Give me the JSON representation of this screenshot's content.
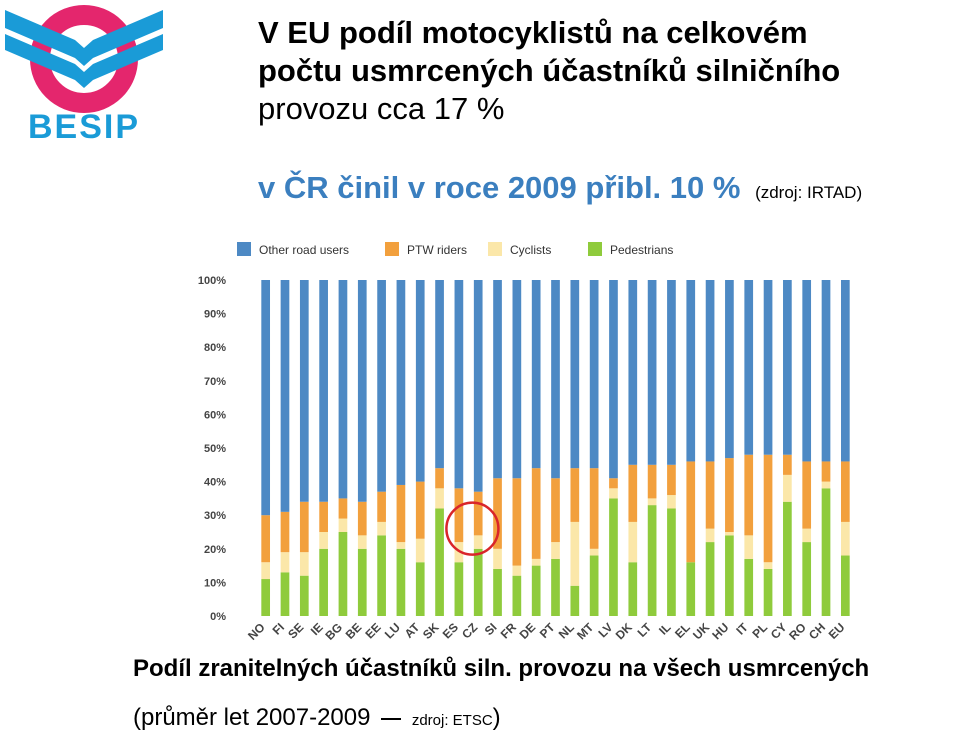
{
  "logo": {
    "text": "BESIP",
    "colors": {
      "ring": "#e4266d",
      "chevron": "#1a9bd7"
    }
  },
  "headline": {
    "line1": "V EU podíl motocyklistů na celkovém",
    "line2": "počtu usmrcených účastníků silničního",
    "line3": "provozu cca 17 %"
  },
  "subline": {
    "text": "v ČR činil v roce 2009 přibl. 10 %",
    "source": "(zdroj: IRTAD)"
  },
  "caption": {
    "line1": "Podíl zranitelných účastníků siln. provozu na všech usmrcených",
    "line2_a": "(průměr let 2007-2009",
    "line2_src": "zdroj: ETSC",
    "line2_b": ")"
  },
  "chart_data": {
    "type": "bar",
    "stacked": true,
    "percent": true,
    "categories": [
      "NO",
      "FI",
      "SE",
      "IE",
      "BG",
      "BE",
      "EE",
      "LU",
      "AT",
      "SK",
      "ES",
      "CZ",
      "SI",
      "FR",
      "DE",
      "PT",
      "NL",
      "MT",
      "LV",
      "DK",
      "LT",
      "IL",
      "EL",
      "UK",
      "HU",
      "IT",
      "PL",
      "CY",
      "RO",
      "CH",
      "EU"
    ],
    "series": [
      {
        "name": "Pedestrians",
        "color": "#8fcb3c",
        "values": [
          11,
          13,
          12,
          20,
          25,
          20,
          24,
          20,
          16,
          32,
          16,
          20,
          14,
          12,
          15,
          17,
          9,
          18,
          35,
          16,
          33,
          32,
          16,
          22,
          24,
          17,
          14,
          34,
          22,
          38,
          18
        ]
      },
      {
        "name": "Cyclists",
        "color": "#fbe7a9",
        "values": [
          5,
          6,
          7,
          5,
          4,
          4,
          4,
          2,
          7,
          6,
          6,
          4,
          6,
          3,
          2,
          5,
          19,
          2,
          3,
          12,
          2,
          4,
          0,
          4,
          1,
          7,
          2,
          8,
          4,
          2,
          10
        ]
      },
      {
        "name": "PTW riders",
        "color": "#f2a03d",
        "values": [
          14,
          12,
          15,
          9,
          6,
          10,
          9,
          17,
          17,
          6,
          16,
          13,
          21,
          26,
          27,
          19,
          16,
          24,
          3,
          17,
          10,
          9,
          30,
          20,
          22,
          24,
          32,
          6,
          20,
          6,
          18
        ]
      },
      {
        "name": "Other road users",
        "color": "#4d89c4",
        "values": [
          70,
          69,
          66,
          66,
          65,
          66,
          63,
          61,
          60,
          56,
          62,
          63,
          59,
          59,
          56,
          59,
          56,
          56,
          59,
          55,
          55,
          55,
          54,
          54,
          53,
          52,
          52,
          52,
          54,
          54,
          54
        ]
      }
    ],
    "legend_order": [
      "Other road users",
      "PTW riders",
      "Cyclists",
      "Pedestrians"
    ],
    "legend_position": "top",
    "ylim": [
      0,
      100
    ],
    "yticks": [
      "0%",
      "10%",
      "20%",
      "30%",
      "40%",
      "50%",
      "60%",
      "70%",
      "80%",
      "90%",
      "100%"
    ],
    "highlight": {
      "category": "CZ",
      "color": "#d9252a"
    }
  }
}
